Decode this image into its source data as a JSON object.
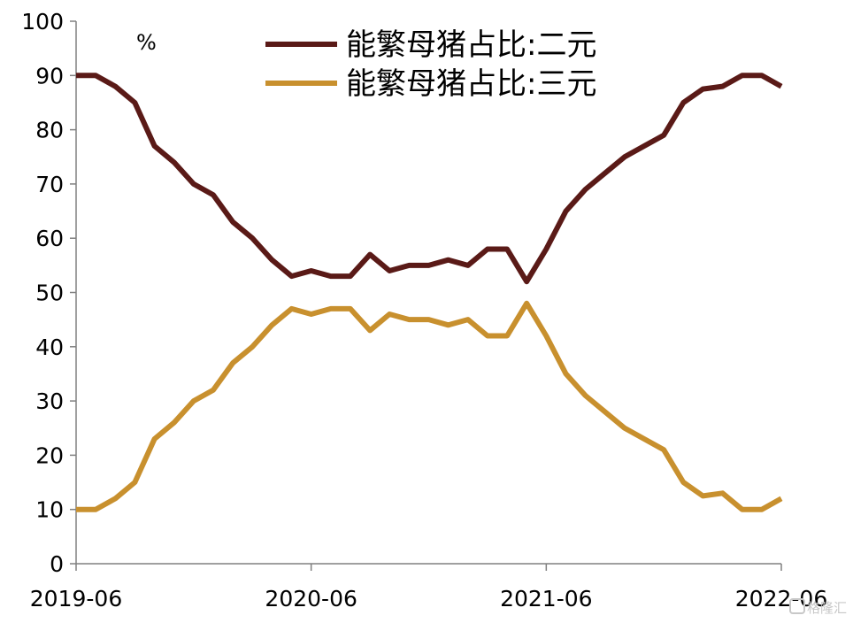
{
  "chart_data": {
    "type": "line",
    "title": "",
    "xlabel": "",
    "ylabel": "",
    "unit_label": "%",
    "ylim": [
      0,
      100
    ],
    "yticks": [
      0,
      10,
      20,
      30,
      40,
      50,
      60,
      70,
      80,
      90,
      100
    ],
    "xtick_labels": [
      "2019-06",
      "2020-06",
      "2021-06",
      "2022-06"
    ],
    "x": [
      "2019-06",
      "2019-07",
      "2019-08",
      "2019-09",
      "2019-10",
      "2019-11",
      "2019-12",
      "2020-01",
      "2020-02",
      "2020-03",
      "2020-04",
      "2020-05",
      "2020-06",
      "2020-07",
      "2020-08",
      "2020-09",
      "2020-10",
      "2020-11",
      "2020-12",
      "2021-01",
      "2021-02",
      "2021-03",
      "2021-04",
      "2021-05",
      "2021-06",
      "2021-07",
      "2021-08",
      "2021-09",
      "2021-10",
      "2021-11",
      "2021-12",
      "2022-01",
      "2022-02",
      "2022-03",
      "2022-04",
      "2022-05",
      "2022-06"
    ],
    "grid": false,
    "legend": "top-right",
    "series": [
      {
        "name": "能繁母猪占比:二元",
        "color": "#5a1a17",
        "values": [
          90,
          90,
          88,
          85,
          77,
          74,
          70,
          68,
          63,
          60,
          56,
          53,
          54,
          53,
          53,
          57,
          54,
          55,
          55,
          56,
          55,
          58,
          58,
          52,
          58,
          65,
          69,
          72,
          75,
          77,
          79,
          85,
          87.5,
          88,
          90,
          90,
          88
        ]
      },
      {
        "name": "能繁母猪占比:三元",
        "color": "#c8902e",
        "values": [
          10,
          10,
          12,
          15,
          23,
          26,
          30,
          32,
          37,
          40,
          44,
          47,
          46,
          47,
          47,
          43,
          46,
          45,
          45,
          44,
          45,
          42,
          42,
          48,
          42,
          35,
          31,
          28,
          25,
          23,
          21,
          15,
          12.5,
          13,
          10,
          10,
          12
        ]
      }
    ]
  },
  "watermark": "格隆汇"
}
